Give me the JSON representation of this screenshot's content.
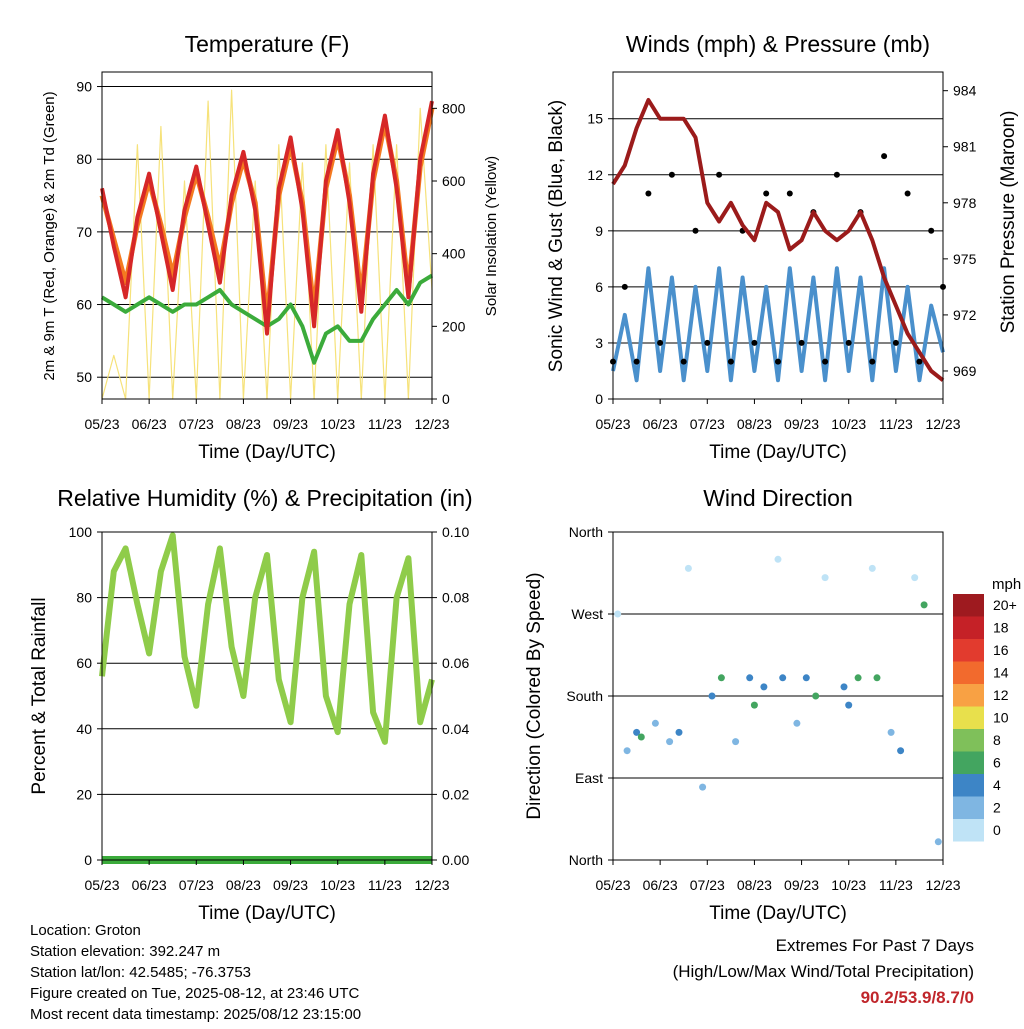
{
  "colors": {
    "temp_2m": "#d62728",
    "temp_9m": "#f47a20",
    "dewpoint": "#3bab3b",
    "solar": "#f6e27a",
    "wind": "#4a90cc",
    "gust": "#000000",
    "pressure": "#9b1b1b",
    "rh": "#8fcc4a",
    "precip": "#3bab3b"
  },
  "x_ticks": [
    "05/23",
    "06/23",
    "07/23",
    "08/23",
    "09/23",
    "10/23",
    "11/23",
    "12/23"
  ],
  "panels": {
    "temperature": {
      "title": "Temperature (F)",
      "xlabel": "Time (Day/UTC)",
      "ylabel": "2m & 9m T (Red, Orange) & 2m Td (Green)",
      "y2label": "Solar Insolation (Yellow)",
      "yticks": [
        "90",
        "80",
        "70",
        "60",
        "50"
      ],
      "y2ticks": [
        "800",
        "600",
        "400",
        "200",
        "0"
      ]
    },
    "winds": {
      "title": "Winds (mph) & Pressure (mb)",
      "xlabel": "Time (Day/UTC)",
      "ylabel": "Sonic Wind & Gust (Blue, Black)",
      "y2label": "Station Pressure (Maroon)",
      "yticks": [
        "15",
        "12",
        "9",
        "6",
        "3",
        "0"
      ],
      "y2ticks": [
        "984",
        "981",
        "978",
        "975",
        "972",
        "969"
      ]
    },
    "humidity": {
      "title": "Relative Humidity (%) & Precipitation (in)",
      "xlabel": "Time (Day/UTC)",
      "ylabel": "Percent & Total Rainfall",
      "yticks": [
        "100",
        "80",
        "60",
        "40",
        "20",
        "0"
      ],
      "y2ticks": [
        "0.10",
        "0.08",
        "0.06",
        "0.04",
        "0.02",
        "0.00"
      ]
    },
    "direction": {
      "title": "Wind Direction",
      "xlabel": "Time (Day/UTC)",
      "ylabel": "Direction (Colored By Speed)",
      "yticks": [
        "North",
        "West",
        "South",
        "East",
        "North"
      ],
      "legend_title": "mph",
      "legend": [
        {
          "label": "20+",
          "color": "#9e1a1f"
        },
        {
          "label": "18",
          "color": "#c52127"
        },
        {
          "label": "16",
          "color": "#e23b2e"
        },
        {
          "label": "14",
          "color": "#f26a2d"
        },
        {
          "label": "12",
          "color": "#f8a144"
        },
        {
          "label": "10",
          "color": "#e8e04c"
        },
        {
          "label": "8",
          "color": "#7fc05a"
        },
        {
          "label": "6",
          "color": "#43a560"
        },
        {
          "label": "4",
          "color": "#3d85c6"
        },
        {
          "label": "2",
          "color": "#7fb6e2"
        },
        {
          "label": "0",
          "color": "#bfe3f6"
        }
      ]
    }
  },
  "info": {
    "location": "Location: Groton",
    "elevation": "Station elevation: 392.247 m",
    "latlon": "Station lat/lon: 42.5485; -76.3753",
    "created": "Figure created on Tue, 2025-08-12, at 23:46 UTC",
    "recent": "Most recent data timestamp: 2025/08/12 23:15:00"
  },
  "extremes": {
    "line1": "Extremes For Past 7 Days",
    "line2": "(High/Low/Max Wind/Total Precipitation)",
    "values": "90.2/53.9/8.7/0"
  },
  "chart_data": [
    {
      "type": "line",
      "title": "Temperature (F)",
      "xlabel": "Time (Day/UTC)",
      "ylabel": "2m & 9m T (Red, Orange) & 2m Td (Green)",
      "y2label": "Solar Insolation (Yellow)",
      "ylim": [
        47,
        92
      ],
      "y2lim": [
        0,
        900
      ],
      "x": [
        0.0,
        0.25,
        0.5,
        0.75,
        1.0,
        1.25,
        1.5,
        1.75,
        2.0,
        2.25,
        2.5,
        2.75,
        3.0,
        3.25,
        3.5,
        3.75,
        4.0,
        4.25,
        4.5,
        4.75,
        5.0,
        5.25,
        5.5,
        5.75,
        6.0,
        6.25,
        6.5,
        6.75,
        7.0
      ],
      "series": [
        {
          "values": [
            76,
            68,
            61,
            72,
            78,
            70,
            62,
            73,
            79,
            71,
            63,
            75,
            81,
            73,
            56,
            76,
            83,
            73,
            57,
            77,
            84,
            74,
            59,
            78,
            86,
            76,
            61,
            80,
            88
          ]
        },
        {
          "values": [
            75,
            69,
            63,
            71,
            77,
            71,
            64,
            72,
            78,
            72,
            65,
            74,
            80,
            74,
            58,
            75,
            82,
            74,
            59,
            76,
            83,
            75,
            61,
            77,
            85,
            77,
            62,
            79,
            87
          ]
        },
        {
          "values": [
            61,
            60,
            59,
            60,
            61,
            60,
            59,
            60,
            60,
            61,
            62,
            60,
            59,
            58,
            57,
            58,
            60,
            57,
            52,
            56,
            57,
            55,
            55,
            58,
            60,
            62,
            60,
            63,
            64
          ]
        },
        {
          "values": [
            0,
            120,
            0,
            700,
            0,
            750,
            0,
            600,
            0,
            820,
            0,
            850,
            0,
            600,
            0,
            700,
            0,
            650,
            0,
            700,
            0,
            650,
            0,
            700,
            0,
            700,
            0,
            800,
            300
          ]
        }
      ]
    },
    {
      "type": "line",
      "title": "Winds (mph) & Pressure (mb)",
      "xlabel": "Time (Day/UTC)",
      "ylabel": "Sonic Wind & Gust (Blue, Black)",
      "y2label": "Station Pressure (Maroon)",
      "ylim": [
        0,
        17.5
      ],
      "y2lim": [
        967.5,
        985
      ],
      "x": [
        0.0,
        0.25,
        0.5,
        0.75,
        1.0,
        1.25,
        1.5,
        1.75,
        2.0,
        2.25,
        2.5,
        2.75,
        3.0,
        3.25,
        3.5,
        3.75,
        4.0,
        4.25,
        4.5,
        4.75,
        5.0,
        5.25,
        5.5,
        5.75,
        6.0,
        6.25,
        6.5,
        6.75,
        7.0
      ],
      "series": [
        {
          "values": [
            1.5,
            4.5,
            1,
            7,
            1.5,
            6.5,
            1,
            6,
            1.5,
            7,
            1,
            6.5,
            1.5,
            6,
            1,
            7,
            1.5,
            6.5,
            1,
            7,
            1.5,
            6.5,
            1,
            7,
            1.5,
            6,
            1,
            5,
            2.5
          ]
        },
        {
          "values": [
            2,
            6,
            2,
            11,
            3,
            12,
            2,
            9,
            3,
            12,
            2,
            9,
            3,
            11,
            2,
            11,
            3,
            10,
            2,
            12,
            3,
            10,
            2,
            13,
            3,
            11,
            2,
            9,
            6
          ]
        },
        {
          "values": [
            979,
            980,
            982,
            983.5,
            982.5,
            982.5,
            982.5,
            981.5,
            978,
            977,
            978,
            976.8,
            976,
            978,
            977.5,
            975.5,
            976,
            977.5,
            976.5,
            976,
            976.5,
            977.5,
            976,
            974,
            972.5,
            971,
            970,
            969,
            968.5
          ]
        }
      ]
    },
    {
      "type": "line",
      "title": "Relative Humidity (%) & Precipitation (in)",
      "xlabel": "Time (Day/UTC)",
      "ylabel": "Percent & Total Rainfall",
      "ylim": [
        0,
        100
      ],
      "y2lim": [
        0,
        0.1
      ],
      "x": [
        0.0,
        0.25,
        0.5,
        0.75,
        1.0,
        1.25,
        1.5,
        1.75,
        2.0,
        2.25,
        2.5,
        2.75,
        3.0,
        3.25,
        3.5,
        3.75,
        4.0,
        4.25,
        4.5,
        4.75,
        5.0,
        5.25,
        5.5,
        5.75,
        6.0,
        6.25,
        6.5,
        6.75,
        7.0
      ],
      "series": [
        {
          "values": [
            56,
            88,
            95,
            78,
            63,
            88,
            99,
            62,
            47,
            78,
            95,
            65,
            50,
            80,
            93,
            55,
            42,
            80,
            94,
            50,
            39,
            78,
            93,
            45,
            36,
            80,
            92,
            42,
            55
          ]
        },
        {
          "values": [
            0,
            0,
            0,
            0,
            0,
            0,
            0,
            0,
            0,
            0,
            0,
            0,
            0,
            0,
            0,
            0,
            0,
            0,
            0,
            0,
            0,
            0,
            0,
            0,
            0,
            0,
            0,
            0,
            0
          ]
        }
      ]
    },
    {
      "type": "scatter",
      "title": "Wind Direction",
      "xlabel": "Time (Day/UTC)",
      "ylabel": "Direction (Colored By Speed)",
      "ylim": [
        0,
        360
      ],
      "x": [
        0.1,
        0.3,
        0.5,
        0.6,
        0.9,
        1.2,
        1.4,
        1.6,
        1.9,
        2.1,
        2.3,
        2.6,
        2.9,
        3.0,
        3.2,
        3.5,
        3.6,
        3.9,
        4.1,
        4.3,
        4.5,
        4.9,
        5.0,
        5.2,
        5.5,
        5.6,
        5.9,
        6.1,
        6.4,
        6.6,
        6.9
      ],
      "y": [
        270,
        120,
        140,
        135,
        150,
        130,
        140,
        320,
        80,
        180,
        200,
        130,
        200,
        170,
        190,
        330,
        200,
        150,
        200,
        180,
        310,
        190,
        170,
        200,
        320,
        200,
        140,
        120,
        310,
        280,
        20
      ],
      "speeds": [
        1,
        3,
        4,
        6,
        3,
        2,
        4,
        1,
        2,
        4,
        6,
        2,
        4,
        6,
        4,
        1,
        4,
        2,
        4,
        6,
        1,
        4,
        4,
        6,
        1,
        6,
        2,
        4,
        1,
        6,
        3
      ]
    }
  ]
}
